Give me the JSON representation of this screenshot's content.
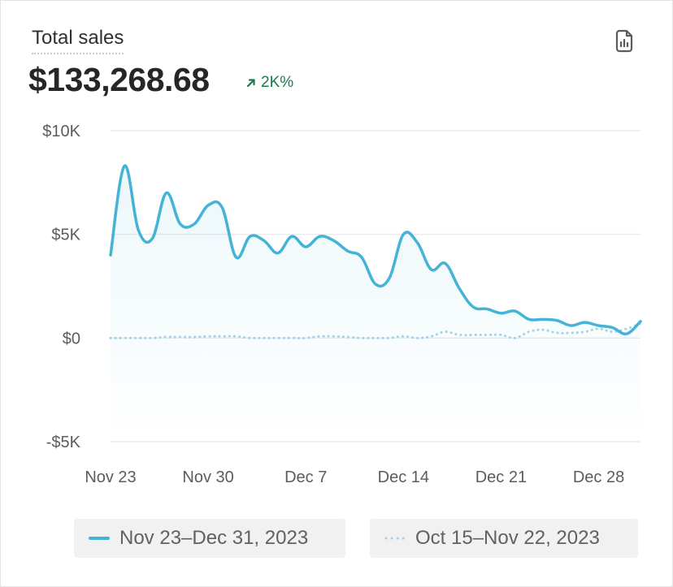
{
  "card": {
    "title": "Total sales",
    "value": "$133,268.68",
    "change": "2K%",
    "icon": "report-icon"
  },
  "colors": {
    "current": "#44b3d6",
    "previous": "#9fd3e8",
    "positive": "#1a7a4e",
    "grid": "#ebebeb",
    "tick": "#5c5c5c"
  },
  "chart_data": {
    "type": "area",
    "title": "Total sales",
    "xlabel": "",
    "ylabel": "",
    "ylim": [
      -5000,
      10000
    ],
    "yticks": [
      10000,
      5000,
      0,
      -5000
    ],
    "ytick_labels": [
      "$10K",
      "$5K",
      "$0",
      "-$5K"
    ],
    "xtick_labels": [
      "Nov 23",
      "Nov 30",
      "Dec 7",
      "Dec 14",
      "Dec 21",
      "Dec 28"
    ],
    "grid": true,
    "legend_position": "bottom",
    "x_day_count": 39,
    "series": [
      {
        "name": "Nov 23–Dec 31, 2023",
        "style": "solid",
        "values": [
          4000,
          8300,
          5200,
          4800,
          7000,
          5500,
          5500,
          6400,
          6300,
          3900,
          4900,
          4700,
          4100,
          4900,
          4400,
          4900,
          4700,
          4200,
          3900,
          2600,
          2900,
          5000,
          4600,
          3300,
          3600,
          2400,
          1500,
          1400,
          1200,
          1300,
          900,
          900,
          850,
          600,
          750,
          600,
          500,
          200,
          800
        ]
      },
      {
        "name": "Oct 15–Nov 22, 2023",
        "style": "dotted",
        "values": [
          0,
          0,
          0,
          0,
          50,
          50,
          50,
          80,
          80,
          80,
          0,
          0,
          0,
          0,
          0,
          80,
          80,
          50,
          0,
          0,
          0,
          80,
          0,
          80,
          300,
          150,
          150,
          150,
          150,
          0,
          300,
          400,
          250,
          250,
          300,
          450,
          300,
          450,
          700
        ]
      }
    ]
  }
}
